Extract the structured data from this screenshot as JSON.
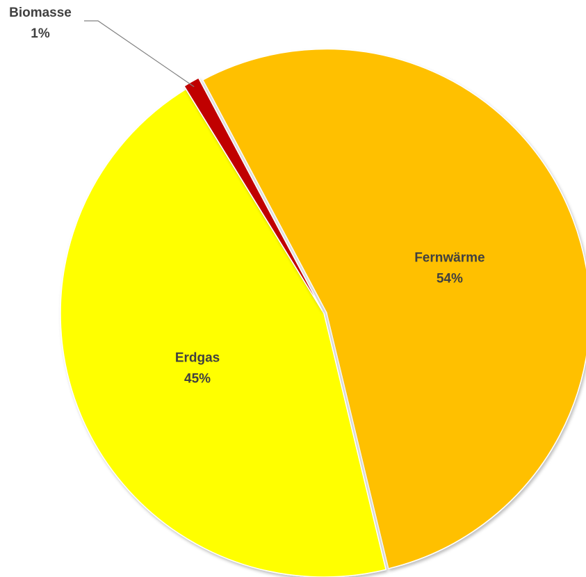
{
  "chart_data": {
    "type": "pie",
    "slices": [
      {
        "label": "Fernwärme",
        "value": 54,
        "value_label": "54%",
        "color": "#FFC000"
      },
      {
        "label": "Erdgas",
        "value": 45,
        "value_label": "45%",
        "color": "#FFFF00"
      },
      {
        "label": "Biomasse",
        "value": 1,
        "value_label": "1%",
        "color": "#C00000"
      }
    ],
    "legend": "none",
    "data_labels": "category and percentage",
    "leader_line_color": "#808080",
    "label_color": "#404040"
  }
}
